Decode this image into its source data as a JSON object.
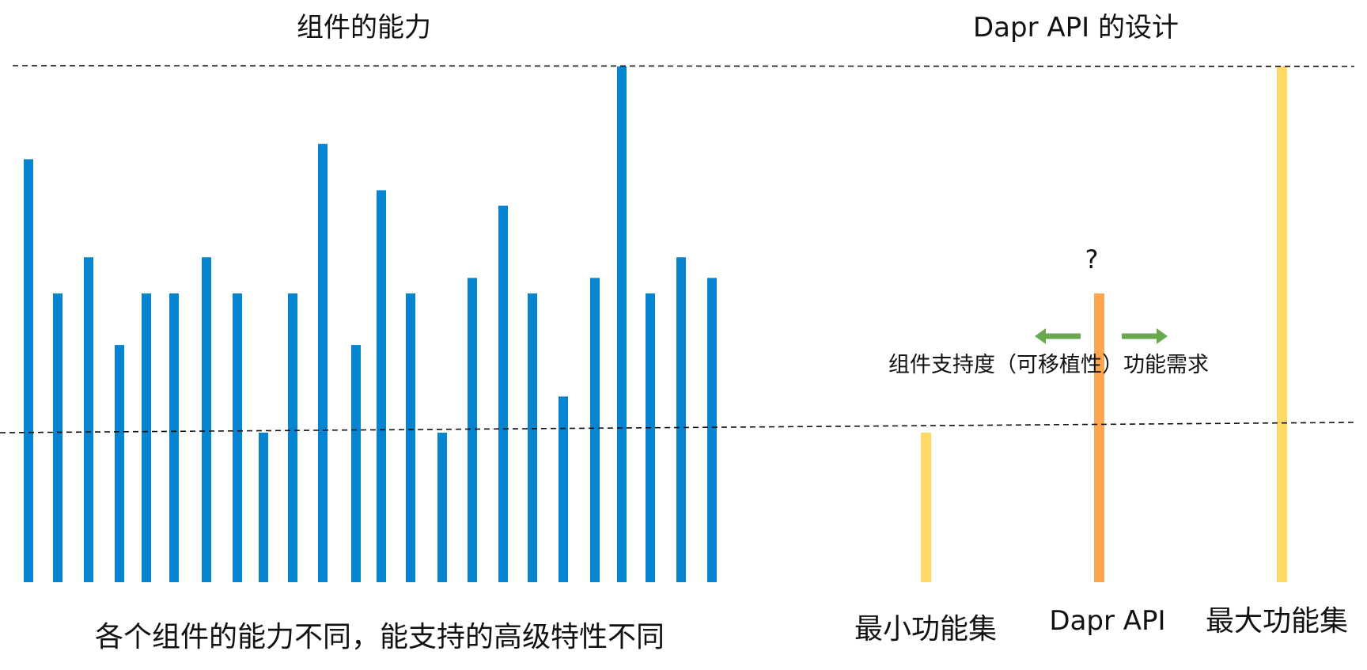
{
  "titles": {
    "left": "组件的能力",
    "right": "Dapr API 的设计"
  },
  "captions": {
    "left": "各个组件的能力不同，能支持的高级特性不同"
  },
  "labels": {
    "min_feature_set": "最小功能集",
    "dapr_api": "Dapr API",
    "max_feature_set": "最大功能集",
    "question_mark": "?",
    "portability": "组件支持度（可移植性）",
    "functional_demand": "功能需求"
  },
  "colors": {
    "component_bar": "#0784D0",
    "feature_set_bar": "#FFD966",
    "api_bar": "#FFA44F",
    "arrow": "#6AA84F",
    "dashed_line": "#111111"
  },
  "chart_data": {
    "type": "bar",
    "component_capabilities": [
      0.82,
      0.56,
      0.63,
      0.46,
      0.56,
      0.56,
      0.63,
      0.56,
      0.29,
      0.56,
      0.85,
      0.46,
      0.76,
      0.56,
      0.29,
      0.59,
      0.73,
      0.56,
      0.36,
      0.59,
      1.0,
      0.56,
      0.63,
      0.59
    ],
    "design_bars": {
      "min_feature_set": 0.29,
      "dapr_api": 0.56,
      "max_feature_set": 1.0
    }
  }
}
